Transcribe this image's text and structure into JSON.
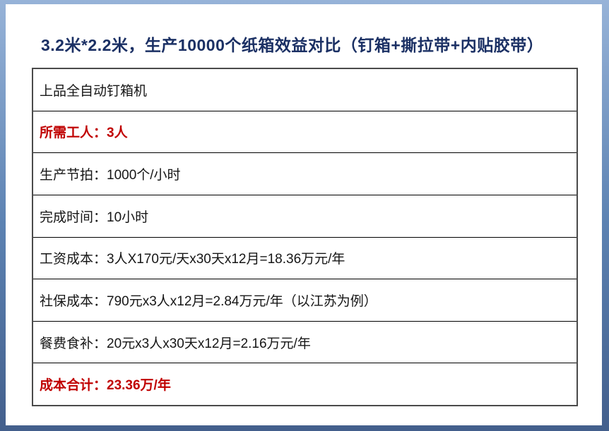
{
  "slide": {
    "title": "3.2米*2.2米，生产10000个纸箱效益对比（钉箱+撕拉带+内贴胶带）"
  },
  "table": {
    "rows": [
      {
        "text": "上品全自动钉箱机",
        "emphasis": false
      },
      {
        "text": "所需工人：3人",
        "emphasis": true
      },
      {
        "text": "生产节拍：1000个/小时",
        "emphasis": false
      },
      {
        "text": "完成时间：10小时",
        "emphasis": false
      },
      {
        "text": "工资成本：3人X170元/天x30天x12月=18.36万元/年",
        "emphasis": false
      },
      {
        "text": "社保成本：790元x3人x12月=2.84万元/年（以江苏为例）",
        "emphasis": false
      },
      {
        "text": "餐费食补：20元x3人x30天x12月=2.16万元/年",
        "emphasis": false
      },
      {
        "text": "成本合计：23.36万/年",
        "emphasis": true
      }
    ]
  },
  "colors": {
    "title": "#1b3064",
    "emphasis": "#c00000",
    "frame_top": "#97b3d8",
    "frame_mid": "#5c82b2",
    "frame_bottom": "#435f8c"
  }
}
